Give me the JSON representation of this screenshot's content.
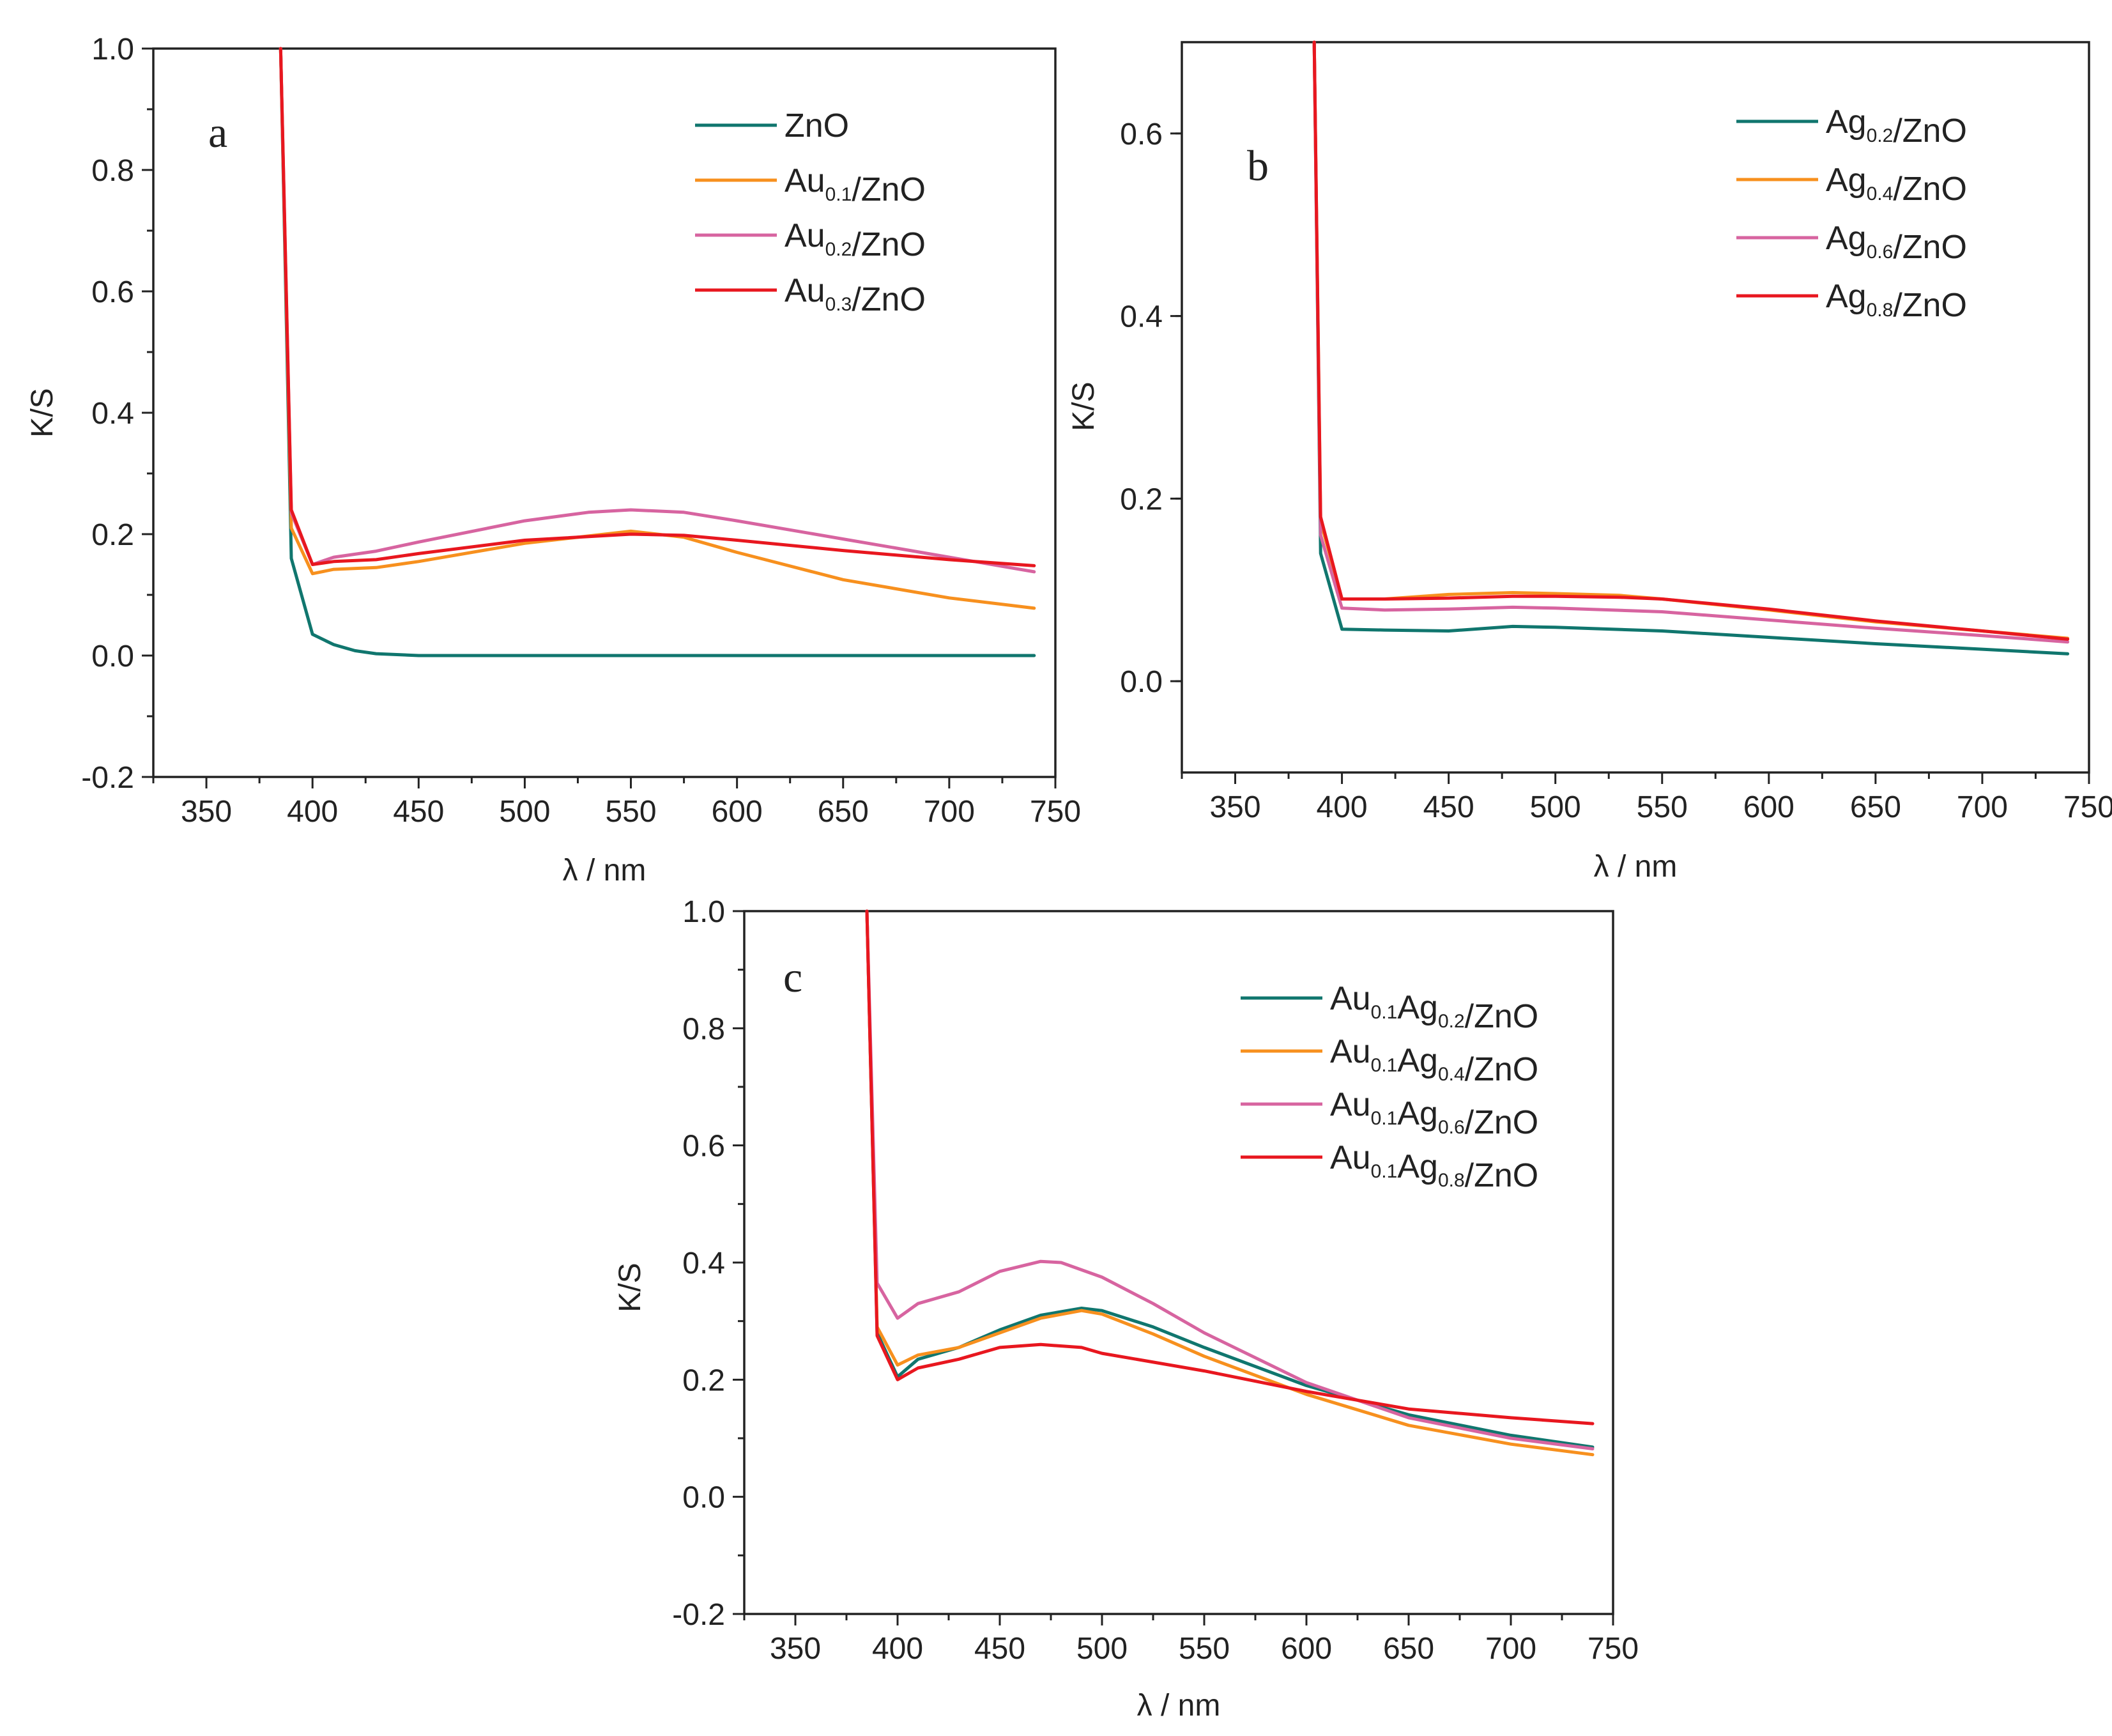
{
  "chart_data": [
    {
      "panel": "a",
      "type": "line",
      "xlabel": "λ / nm",
      "ylabel": "K/S",
      "xlim": [
        325,
        750
      ],
      "ylim": [
        -0.2,
        1.0
      ],
      "xticks": [
        "350",
        "400",
        "450",
        "500",
        "550",
        "600",
        "650",
        "700",
        "750"
      ],
      "yticks": [
        "-0.2",
        "0.0",
        "0.2",
        "0.4",
        "0.6",
        "0.8",
        "1.0"
      ],
      "legend_position": "top-right",
      "series": [
        {
          "name": "ZnO",
          "legend": [
            [
              "ZnO",
              ""
            ]
          ],
          "color": "#10766e",
          "x": [
            385,
            390,
            400,
            410,
            420,
            430,
            450,
            500,
            550,
            600,
            650,
            700,
            740
          ],
          "y": [
            1.0,
            0.16,
            0.035,
            0.018,
            0.008,
            0.003,
            0.0,
            0.0,
            0.0,
            0.0,
            0.0,
            0.0,
            0.0
          ]
        },
        {
          "name": "Au0.1/ZnO",
          "legend": [
            [
              "Au",
              "0.1"
            ],
            [
              "/ZnO",
              ""
            ]
          ],
          "color": "#f7901e",
          "x": [
            385,
            390,
            400,
            410,
            430,
            450,
            500,
            550,
            575,
            600,
            650,
            700,
            740
          ],
          "y": [
            1.0,
            0.21,
            0.135,
            0.142,
            0.145,
            0.155,
            0.185,
            0.205,
            0.195,
            0.17,
            0.125,
            0.095,
            0.078
          ]
        },
        {
          "name": "Au0.2/ZnO",
          "legend": [
            [
              "Au",
              "0.2"
            ],
            [
              "/ZnO",
              ""
            ]
          ],
          "color": "#d764a0",
          "x": [
            385,
            390,
            400,
            410,
            430,
            450,
            500,
            530,
            550,
            575,
            600,
            650,
            700,
            740
          ],
          "y": [
            1.0,
            0.235,
            0.15,
            0.162,
            0.172,
            0.187,
            0.222,
            0.236,
            0.24,
            0.236,
            0.222,
            0.192,
            0.162,
            0.138
          ]
        },
        {
          "name": "Au0.3/ZnO",
          "legend": [
            [
              "Au",
              "0.3"
            ],
            [
              "/ZnO",
              ""
            ]
          ],
          "color": "#e8171f",
          "x": [
            385,
            390,
            400,
            410,
            430,
            450,
            500,
            550,
            575,
            600,
            650,
            700,
            740
          ],
          "y": [
            1.0,
            0.24,
            0.15,
            0.155,
            0.158,
            0.168,
            0.19,
            0.2,
            0.198,
            0.19,
            0.173,
            0.158,
            0.148
          ]
        }
      ]
    },
    {
      "panel": "b",
      "type": "line",
      "xlabel": "λ / nm",
      "ylabel": "K/S",
      "xlim": [
        325,
        750
      ],
      "ylim": [
        -0.1,
        0.7
      ],
      "xticks": [
        "350",
        "400",
        "450",
        "500",
        "550",
        "600",
        "650",
        "700",
        "750"
      ],
      "yticks": [
        "0.0",
        "0.2",
        "0.4",
        "0.6"
      ],
      "legend_position": "top-right",
      "series": [
        {
          "name": "Ag0.2/ZnO",
          "legend": [
            [
              "Ag",
              "0.2"
            ],
            [
              "/ZnO",
              ""
            ]
          ],
          "color": "#10766e",
          "x": [
            387,
            390,
            400,
            420,
            450,
            480,
            500,
            550,
            600,
            650,
            700,
            740
          ],
          "y": [
            0.7,
            0.14,
            0.057,
            0.056,
            0.055,
            0.06,
            0.059,
            0.055,
            0.048,
            0.041,
            0.035,
            0.03
          ]
        },
        {
          "name": "Ag0.4/ZnO",
          "legend": [
            [
              "Ag",
              "0.4"
            ],
            [
              "/ZnO",
              ""
            ]
          ],
          "color": "#f7901e",
          "x": [
            387,
            390,
            400,
            420,
            450,
            480,
            500,
            530,
            550,
            600,
            650,
            700,
            740
          ],
          "y": [
            0.7,
            0.175,
            0.09,
            0.09,
            0.095,
            0.097,
            0.096,
            0.094,
            0.09,
            0.078,
            0.065,
            0.055,
            0.047
          ]
        },
        {
          "name": "Ag0.6/ZnO",
          "legend": [
            [
              "Ag",
              "0.6"
            ],
            [
              "/ZnO",
              ""
            ]
          ],
          "color": "#d764a0",
          "x": [
            387,
            390,
            400,
            420,
            450,
            480,
            500,
            550,
            600,
            650,
            700,
            740
          ],
          "y": [
            0.7,
            0.16,
            0.08,
            0.078,
            0.079,
            0.081,
            0.08,
            0.076,
            0.067,
            0.058,
            0.05,
            0.043
          ]
        },
        {
          "name": "Ag0.8/ZnO",
          "legend": [
            [
              "Ag",
              "0.8"
            ],
            [
              "/ZnO",
              ""
            ]
          ],
          "color": "#e8171f",
          "x": [
            387,
            390,
            400,
            420,
            450,
            480,
            500,
            530,
            550,
            600,
            650,
            700,
            740
          ],
          "y": [
            0.7,
            0.18,
            0.09,
            0.09,
            0.091,
            0.093,
            0.093,
            0.092,
            0.09,
            0.079,
            0.066,
            0.055,
            0.046
          ]
        }
      ]
    },
    {
      "panel": "c",
      "type": "line",
      "xlabel": "λ / nm",
      "ylabel": "K/S",
      "xlim": [
        325,
        750
      ],
      "ylim": [
        -0.2,
        1.0
      ],
      "xticks": [
        "350",
        "400",
        "450",
        "500",
        "550",
        "600",
        "650",
        "700",
        "750"
      ],
      "yticks": [
        "-0.2",
        "0.0",
        "0.2",
        "0.4",
        "0.6",
        "0.8",
        "1.0"
      ],
      "legend_position": "top-right",
      "series": [
        {
          "name": "Au0.1Ag0.2/ZnO",
          "legend": [
            [
              "Au",
              "0.1"
            ],
            [
              "Ag",
              "0.2"
            ],
            [
              "/ZnO",
              ""
            ]
          ],
          "color": "#10766e",
          "x": [
            385,
            390,
            400,
            410,
            430,
            450,
            470,
            490,
            500,
            525,
            550,
            600,
            650,
            700,
            740
          ],
          "y": [
            1.0,
            0.28,
            0.205,
            0.235,
            0.255,
            0.285,
            0.31,
            0.322,
            0.318,
            0.29,
            0.255,
            0.19,
            0.14,
            0.105,
            0.085
          ]
        },
        {
          "name": "Au0.1Ag0.4/ZnO",
          "legend": [
            [
              "Au",
              "0.1"
            ],
            [
              "Ag",
              "0.4"
            ],
            [
              "/ZnO",
              ""
            ]
          ],
          "color": "#f7901e",
          "x": [
            385,
            390,
            400,
            410,
            430,
            450,
            470,
            490,
            500,
            525,
            550,
            600,
            650,
            700,
            740
          ],
          "y": [
            1.0,
            0.29,
            0.225,
            0.242,
            0.255,
            0.28,
            0.305,
            0.318,
            0.312,
            0.278,
            0.24,
            0.175,
            0.122,
            0.09,
            0.072
          ]
        },
        {
          "name": "Au0.1Ag0.6/ZnO",
          "legend": [
            [
              "Au",
              "0.1"
            ],
            [
              "Ag",
              "0.6"
            ],
            [
              "/ZnO",
              ""
            ]
          ],
          "color": "#d764a0",
          "x": [
            385,
            390,
            400,
            410,
            430,
            450,
            470,
            480,
            500,
            525,
            550,
            600,
            650,
            700,
            740
          ],
          "y": [
            1.0,
            0.365,
            0.305,
            0.33,
            0.35,
            0.385,
            0.402,
            0.4,
            0.375,
            0.33,
            0.28,
            0.195,
            0.135,
            0.1,
            0.082
          ]
        },
        {
          "name": "Au0.1Ag0.8/ZnO",
          "legend": [
            [
              "Au",
              "0.1"
            ],
            [
              "Ag",
              "0.8"
            ],
            [
              "/ZnO",
              ""
            ]
          ],
          "color": "#e8171f",
          "x": [
            385,
            390,
            400,
            410,
            430,
            450,
            470,
            490,
            500,
            550,
            600,
            650,
            700,
            740
          ],
          "y": [
            1.0,
            0.275,
            0.2,
            0.22,
            0.235,
            0.255,
            0.26,
            0.255,
            0.245,
            0.215,
            0.18,
            0.15,
            0.135,
            0.125
          ]
        }
      ]
    }
  ]
}
